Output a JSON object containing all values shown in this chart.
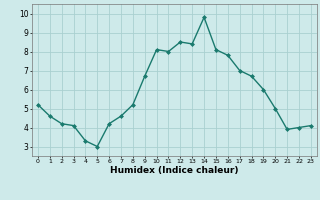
{
  "x": [
    0,
    1,
    2,
    3,
    4,
    5,
    6,
    7,
    8,
    9,
    10,
    11,
    12,
    13,
    14,
    15,
    16,
    17,
    18,
    19,
    20,
    21,
    22,
    23
  ],
  "y": [
    5.2,
    4.6,
    4.2,
    4.1,
    3.3,
    3.0,
    4.2,
    4.6,
    5.2,
    6.7,
    8.1,
    8.0,
    8.5,
    8.4,
    9.8,
    8.1,
    7.8,
    7.0,
    6.7,
    6.0,
    5.0,
    3.9,
    4.0,
    4.1
  ],
  "xlim": [
    -0.5,
    23.5
  ],
  "ylim": [
    2.5,
    10.5
  ],
  "yticks": [
    3,
    4,
    5,
    6,
    7,
    8,
    9,
    10
  ],
  "xticks": [
    0,
    1,
    2,
    3,
    4,
    5,
    6,
    7,
    8,
    9,
    10,
    11,
    12,
    13,
    14,
    15,
    16,
    17,
    18,
    19,
    20,
    21,
    22,
    23
  ],
  "xlabel": "Humidex (Indice chaleur)",
  "line_color": "#1a7a6e",
  "marker": "D",
  "marker_size": 2.0,
  "background_color": "#ceeaea",
  "grid_color": "#aad0d0",
  "axis_bg": "#ceeaea"
}
